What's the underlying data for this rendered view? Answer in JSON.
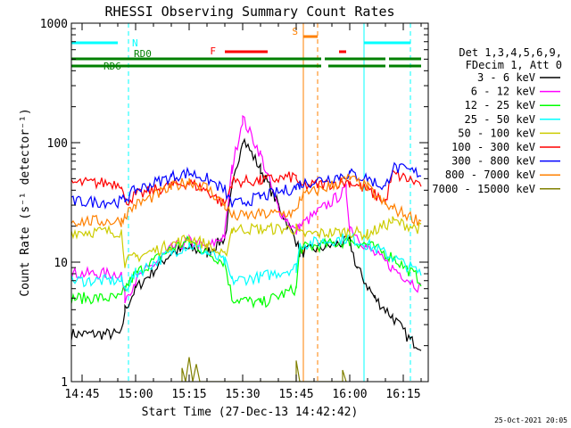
{
  "chart_data": {
    "type": "line",
    "title": "RHESSI Observing Summary Count Rates",
    "xlabel": "Start Time (27-Dec-13 14:42:42)",
    "ylabel": "Count Rate (s⁻¹ detector⁻¹)",
    "yscale": "log",
    "ylim": [
      1,
      1000
    ],
    "xlim": [
      "14:42",
      "16:22"
    ],
    "x_ticks": [
      "14:45",
      "15:00",
      "15:15",
      "15:30",
      "15:45",
      "16:00",
      "16:15"
    ],
    "y_ticks": [
      "1",
      "10",
      "100",
      "1000"
    ],
    "info_lines": [
      "Det 1,3,4,5,6,9,",
      "FDecim 1, Att 0"
    ],
    "timestamp": "25-Oct-2021 20:05",
    "legend_position": "right",
    "series": [
      {
        "name": "3 - 6 keV",
        "color": "#000000",
        "points": [
          [
            "14:42",
            2.5
          ],
          [
            "14:56",
            2.5
          ],
          [
            "14:57",
            4
          ],
          [
            "15:00",
            6
          ],
          [
            "15:10",
            12
          ],
          [
            "15:15",
            13
          ],
          [
            "15:20",
            12
          ],
          [
            "15:25",
            16
          ],
          [
            "15:27",
            40
          ],
          [
            "15:30",
            110
          ],
          [
            "15:35",
            60
          ],
          [
            "15:40",
            30
          ],
          [
            "15:45",
            15
          ],
          [
            "15:46",
            12
          ],
          [
            "16:00",
            15
          ],
          [
            "16:02",
            9
          ],
          [
            "16:07",
            5
          ],
          [
            "16:12",
            3.5
          ],
          [
            "16:17",
            2.2
          ],
          [
            "16:20",
            2
          ]
        ]
      },
      {
        "name": "6 - 12 keV",
        "color": "#ff00ff",
        "points": [
          [
            "14:42",
            8
          ],
          [
            "14:56",
            8
          ],
          [
            "14:57",
            5
          ],
          [
            "15:00",
            7
          ],
          [
            "15:10",
            13
          ],
          [
            "15:15",
            15
          ],
          [
            "15:20",
            13
          ],
          [
            "15:25",
            17
          ],
          [
            "15:27",
            60
          ],
          [
            "15:30",
            160
          ],
          [
            "15:35",
            80
          ],
          [
            "15:40",
            28
          ],
          [
            "15:45",
            18
          ],
          [
            "15:46",
            20
          ],
          [
            "15:59",
            40
          ],
          [
            "16:00",
            20
          ],
          [
            "16:05",
            13
          ],
          [
            "16:12",
            9
          ],
          [
            "16:20",
            6
          ]
        ]
      },
      {
        "name": "12 - 25 keV",
        "color": "#00ff00",
        "points": [
          [
            "14:42",
            5
          ],
          [
            "14:56",
            5
          ],
          [
            "14:57",
            6
          ],
          [
            "15:00",
            8
          ],
          [
            "15:10",
            13
          ],
          [
            "15:15",
            15
          ],
          [
            "15:20",
            12
          ],
          [
            "15:25",
            10
          ],
          [
            "15:27",
            5
          ],
          [
            "15:35",
            4.5
          ],
          [
            "15:45",
            6
          ],
          [
            "15:46",
            13
          ],
          [
            "16:00",
            15
          ],
          [
            "16:05",
            14
          ],
          [
            "16:12",
            11
          ],
          [
            "16:20",
            7
          ]
        ]
      },
      {
        "name": "25 - 50 keV",
        "color": "#00ffff",
        "points": [
          [
            "14:42",
            7
          ],
          [
            "14:56",
            7
          ],
          [
            "14:57",
            6
          ],
          [
            "15:00",
            8
          ],
          [
            "15:10",
            12
          ],
          [
            "15:15",
            14
          ],
          [
            "15:20",
            12
          ],
          [
            "15:25",
            10
          ],
          [
            "15:27",
            7
          ],
          [
            "15:35",
            7.5
          ],
          [
            "15:45",
            9
          ],
          [
            "15:46",
            14
          ],
          [
            "16:00",
            16
          ],
          [
            "16:05",
            14
          ],
          [
            "16:12",
            11
          ],
          [
            "16:20",
            8
          ]
        ]
      },
      {
        "name": "50 - 100 keV",
        "color": "#cccc00",
        "points": [
          [
            "14:42",
            18
          ],
          [
            "14:56",
            18
          ],
          [
            "14:57",
            10
          ],
          [
            "15:00",
            11
          ],
          [
            "15:10",
            14
          ],
          [
            "15:15",
            16
          ],
          [
            "15:20",
            14
          ],
          [
            "15:25",
            11
          ],
          [
            "15:27",
            19
          ],
          [
            "15:35",
            19
          ],
          [
            "15:45",
            19
          ],
          [
            "15:46",
            17
          ],
          [
            "16:00",
            18
          ],
          [
            "16:05",
            17
          ],
          [
            "16:12",
            22
          ],
          [
            "16:20",
            19
          ]
        ]
      },
      {
        "name": "100 - 300 keV",
        "color": "#ff0000",
        "points": [
          [
            "14:42",
            46
          ],
          [
            "14:56",
            46
          ],
          [
            "14:57",
            32
          ],
          [
            "15:00",
            36
          ],
          [
            "15:10",
            44
          ],
          [
            "15:15",
            46
          ],
          [
            "15:20",
            40
          ],
          [
            "15:25",
            30
          ],
          [
            "15:27",
            47
          ],
          [
            "15:35",
            48
          ],
          [
            "15:45",
            52
          ],
          [
            "15:46",
            43
          ],
          [
            "16:00",
            47
          ],
          [
            "16:05",
            40
          ],
          [
            "16:10",
            32
          ],
          [
            "16:12",
            55
          ],
          [
            "16:20",
            45
          ]
        ]
      },
      {
        "name": "300 - 800 keV",
        "color": "#0000ff",
        "points": [
          [
            "14:42",
            32
          ],
          [
            "14:56",
            32
          ],
          [
            "14:57",
            34
          ],
          [
            "15:00",
            40
          ],
          [
            "15:10",
            52
          ],
          [
            "15:15",
            56
          ],
          [
            "15:20",
            50
          ],
          [
            "15:25",
            40
          ],
          [
            "15:27",
            30
          ],
          [
            "15:35",
            35
          ],
          [
            "15:45",
            42
          ],
          [
            "15:46",
            45
          ],
          [
            "16:00",
            55
          ],
          [
            "16:05",
            50
          ],
          [
            "16:10",
            42
          ],
          [
            "16:12",
            62
          ],
          [
            "16:20",
            55
          ]
        ]
      },
      {
        "name": "800 - 7000 keV",
        "color": "#ff8000",
        "points": [
          [
            "14:42",
            22
          ],
          [
            "14:56",
            22
          ],
          [
            "14:57",
            25
          ],
          [
            "15:00",
            30
          ],
          [
            "15:10",
            42
          ],
          [
            "15:15",
            48
          ],
          [
            "15:20",
            42
          ],
          [
            "15:25",
            30
          ],
          [
            "15:27",
            24
          ],
          [
            "15:35",
            25
          ],
          [
            "15:45",
            26
          ],
          [
            "15:46",
            35
          ],
          [
            "16:00",
            50
          ],
          [
            "16:05",
            42
          ],
          [
            "16:10",
            30
          ],
          [
            "16:12",
            28
          ],
          [
            "16:20",
            22
          ]
        ]
      },
      {
        "name": "7000 - 15000 keV",
        "color": "#808000",
        "points": [
          [
            "15:13",
            1
          ],
          [
            "15:13",
            1.3
          ],
          [
            "15:14",
            1
          ],
          [
            "15:15",
            1.6
          ],
          [
            "15:16",
            1
          ],
          [
            "15:17",
            1.4
          ],
          [
            "15:18",
            1
          ],
          [
            "15:45",
            1
          ],
          [
            "15:45",
            1.5
          ],
          [
            "15:46",
            1
          ],
          [
            "15:58",
            1
          ],
          [
            "15:58",
            1.25
          ],
          [
            "15:59",
            1
          ]
        ]
      }
    ],
    "flags": [
      {
        "label": "N",
        "color": "#00ffff",
        "segments": [
          [
            "14:42",
            "14:55"
          ],
          [
            "16:04",
            "16:17"
          ]
        ]
      },
      {
        "label": "RD0",
        "color": "#008000",
        "segments": [
          [
            "14:42",
            "15:27"
          ],
          [
            "15:27",
            "15:52"
          ],
          [
            "15:53",
            "16:10"
          ],
          [
            "16:11",
            "16:20"
          ]
        ]
      },
      {
        "label": "RD6",
        "color": "#008000",
        "segments": [
          [
            "14:42",
            "15:28"
          ],
          [
            "15:27",
            "15:52"
          ],
          [
            "15:54",
            "16:10"
          ],
          [
            "16:11",
            "16:20"
          ]
        ]
      },
      {
        "label": "F",
        "color": "#ff0000",
        "segments": [
          [
            "15:25",
            "15:37"
          ],
          [
            "15:57",
            "15:59"
          ]
        ]
      },
      {
        "label": "S",
        "color": "#ff8000",
        "segments": [
          [
            "15:47",
            "15:51"
          ]
        ]
      }
    ],
    "vertical_lines": [
      {
        "time": "14:42",
        "color": "#00ffff",
        "style": "solid"
      },
      {
        "time": "14:58",
        "color": "#00ffff",
        "style": "dashed"
      },
      {
        "time": "15:47",
        "color": "#ff8000",
        "style": "solid"
      },
      {
        "time": "15:51",
        "color": "#ff8000",
        "style": "dashed"
      },
      {
        "time": "16:04",
        "color": "#00ffff",
        "style": "solid"
      },
      {
        "time": "16:17",
        "color": "#00ffff",
        "style": "dashed"
      }
    ]
  }
}
